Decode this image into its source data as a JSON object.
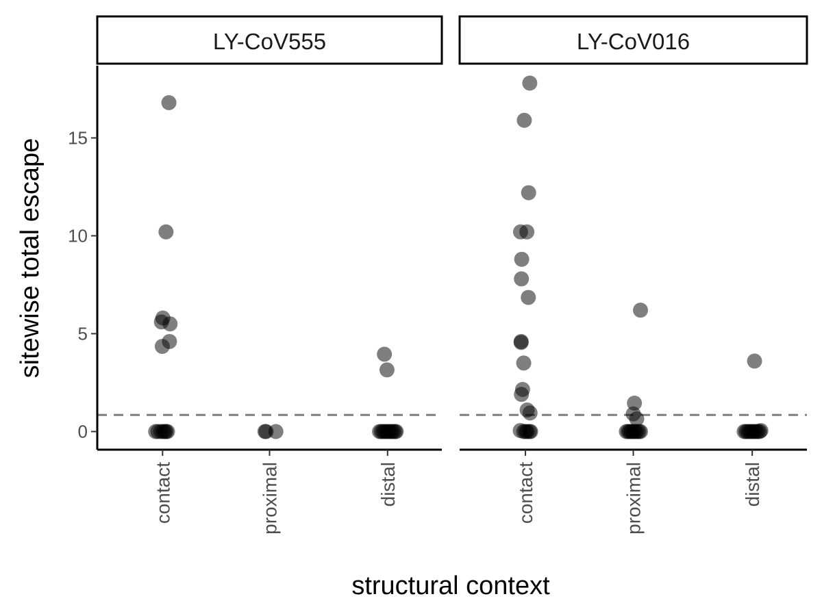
{
  "chart_data": {
    "type": "scatter",
    "xlabel": "structural context",
    "ylabel": "sitewise total escape",
    "ylim": [
      -0.9,
      18.8
    ],
    "yticks": [
      0,
      5,
      10,
      15
    ],
    "categories": [
      "contact",
      "proximal",
      "distal"
    ],
    "threshold": 0.85,
    "point_color": "#000000",
    "panels": [
      {
        "name": "LY-CoV555",
        "points": [
          {
            "x": "contact",
            "jitter": -0.24,
            "y": 0
          },
          {
            "x": "contact",
            "jitter": -0.16,
            "y": 0
          },
          {
            "x": "contact",
            "jitter": -0.06,
            "y": 0
          },
          {
            "x": "contact",
            "jitter": 0.02,
            "y": 0
          },
          {
            "x": "contact",
            "jitter": 0.08,
            "y": 0
          },
          {
            "x": "contact",
            "jitter": 0.12,
            "y": 0
          },
          {
            "x": "contact",
            "jitter": 0.17,
            "y": 0
          },
          {
            "x": "contact",
            "jitter": 0.22,
            "y": 16.8
          },
          {
            "x": "contact",
            "jitter": 0.12,
            "y": 10.2
          },
          {
            "x": "contact",
            "jitter": 0.01,
            "y": 5.8
          },
          {
            "x": "contact",
            "jitter": -0.04,
            "y": 5.6
          },
          {
            "x": "contact",
            "jitter": 0.26,
            "y": 5.5
          },
          {
            "x": "contact",
            "jitter": 0.24,
            "y": 4.6
          },
          {
            "x": "contact",
            "jitter": -0.01,
            "y": 4.35
          },
          {
            "x": "proximal",
            "jitter": -0.16,
            "y": 0
          },
          {
            "x": "proximal",
            "jitter": -0.12,
            "y": 0
          },
          {
            "x": "proximal",
            "jitter": 0.22,
            "y": 0
          },
          {
            "x": "distal",
            "jitter": -0.28,
            "y": 0
          },
          {
            "x": "distal",
            "jitter": -0.22,
            "y": 0
          },
          {
            "x": "distal",
            "jitter": -0.16,
            "y": 0
          },
          {
            "x": "distal",
            "jitter": -0.1,
            "y": 0
          },
          {
            "x": "distal",
            "jitter": -0.04,
            "y": 0
          },
          {
            "x": "distal",
            "jitter": 0.02,
            "y": 0
          },
          {
            "x": "distal",
            "jitter": 0.08,
            "y": 0
          },
          {
            "x": "distal",
            "jitter": 0.14,
            "y": 0
          },
          {
            "x": "distal",
            "jitter": 0.2,
            "y": 0
          },
          {
            "x": "distal",
            "jitter": 0.26,
            "y": 0
          },
          {
            "x": "distal",
            "jitter": 0.3,
            "y": 0
          },
          {
            "x": "distal",
            "jitter": -0.11,
            "y": 3.95
          },
          {
            "x": "distal",
            "jitter": -0.02,
            "y": 3.15
          }
        ]
      },
      {
        "name": "LY-CoV016",
        "points": [
          {
            "x": "contact",
            "jitter": 0.15,
            "y": 17.8
          },
          {
            "x": "contact",
            "jitter": -0.04,
            "y": 15.9
          },
          {
            "x": "contact",
            "jitter": 0.11,
            "y": 12.2
          },
          {
            "x": "contact",
            "jitter": -0.17,
            "y": 10.2
          },
          {
            "x": "contact",
            "jitter": 0.05,
            "y": 10.2
          },
          {
            "x": "contact",
            "jitter": -0.13,
            "y": 8.8
          },
          {
            "x": "contact",
            "jitter": -0.14,
            "y": 7.8
          },
          {
            "x": "contact",
            "jitter": 0.1,
            "y": 6.85
          },
          {
            "x": "contact",
            "jitter": -0.15,
            "y": 4.6
          },
          {
            "x": "contact",
            "jitter": -0.15,
            "y": 4.55
          },
          {
            "x": "contact",
            "jitter": -0.06,
            "y": 3.5
          },
          {
            "x": "contact",
            "jitter": -0.1,
            "y": 2.15
          },
          {
            "x": "contact",
            "jitter": -0.14,
            "y": 1.9
          },
          {
            "x": "contact",
            "jitter": 0.06,
            "y": 1.1
          },
          {
            "x": "contact",
            "jitter": 0.16,
            "y": 0.95
          },
          {
            "x": "contact",
            "jitter": -0.18,
            "y": 0.05
          },
          {
            "x": "contact",
            "jitter": -0.06,
            "y": 0
          },
          {
            "x": "contact",
            "jitter": 0.01,
            "y": 0
          },
          {
            "x": "contact",
            "jitter": 0.06,
            "y": 0
          },
          {
            "x": "contact",
            "jitter": 0.14,
            "y": 0
          },
          {
            "x": "contact",
            "jitter": 0.18,
            "y": 0
          },
          {
            "x": "proximal",
            "jitter": 0.25,
            "y": 6.2
          },
          {
            "x": "proximal",
            "jitter": 0.04,
            "y": 1.45
          },
          {
            "x": "proximal",
            "jitter": 0,
            "y": 0.9
          },
          {
            "x": "proximal",
            "jitter": 0.12,
            "y": 0.65
          },
          {
            "x": "proximal",
            "jitter": -0.24,
            "y": 0
          },
          {
            "x": "proximal",
            "jitter": -0.18,
            "y": 0
          },
          {
            "x": "proximal",
            "jitter": -0.13,
            "y": 0
          },
          {
            "x": "proximal",
            "jitter": -0.08,
            "y": 0
          },
          {
            "x": "proximal",
            "jitter": -0.03,
            "y": 0
          },
          {
            "x": "proximal",
            "jitter": 0.03,
            "y": 0
          },
          {
            "x": "proximal",
            "jitter": 0.08,
            "y": 0
          },
          {
            "x": "proximal",
            "jitter": 0.14,
            "y": 0
          },
          {
            "x": "proximal",
            "jitter": 0.2,
            "y": 0
          },
          {
            "x": "proximal",
            "jitter": 0.25,
            "y": 0
          },
          {
            "x": "distal",
            "jitter": -0.28,
            "y": 0
          },
          {
            "x": "distal",
            "jitter": -0.22,
            "y": 0
          },
          {
            "x": "distal",
            "jitter": -0.16,
            "y": 0
          },
          {
            "x": "distal",
            "jitter": -0.1,
            "y": 0
          },
          {
            "x": "distal",
            "jitter": -0.04,
            "y": 0
          },
          {
            "x": "distal",
            "jitter": 0.02,
            "y": 0
          },
          {
            "x": "distal",
            "jitter": 0.08,
            "y": 0
          },
          {
            "x": "distal",
            "jitter": 0.14,
            "y": 0
          },
          {
            "x": "distal",
            "jitter": 0.2,
            "y": 0
          },
          {
            "x": "distal",
            "jitter": 0.26,
            "y": 0
          },
          {
            "x": "distal",
            "jitter": 0.3,
            "y": 0.05
          },
          {
            "x": "distal",
            "jitter": 0.08,
            "y": 3.6
          }
        ]
      }
    ]
  }
}
